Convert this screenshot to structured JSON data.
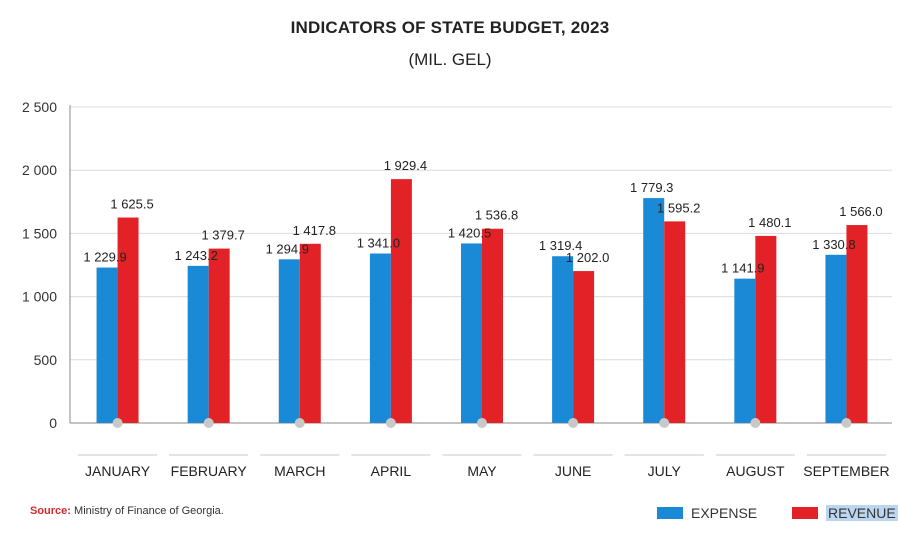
{
  "colors": {
    "expense": "#1a8ad6",
    "revenue": "#e32227"
  },
  "source": {
    "label": "Source:",
    "text": "Ministry of Finance of Georgia."
  },
  "legend": {
    "expense": "EXPENSE",
    "revenue": "REVENUE"
  },
  "chart_data": {
    "type": "bar",
    "title": "INDICATORS OF STATE BUDGET, 2023",
    "subtitle": "(MIL. GEL)",
    "categories": [
      "JANUARY",
      "FEBRUARY",
      "MARCH",
      "APRIL",
      "MAY",
      "JUNE",
      "JULY",
      "AUGUST",
      "SEPTEMBER"
    ],
    "series": [
      {
        "name": "EXPENSE",
        "values": [
          1229.9,
          1243.2,
          1294.9,
          1341.0,
          1420.5,
          1319.4,
          1779.3,
          1141.9,
          1330.8
        ],
        "labels": [
          "1 229.9",
          "1 243.2",
          "1 294.9",
          "1 341.0",
          "1 420.5",
          "1 319.4",
          "1 779.3",
          "1 141.9",
          "1 330.8"
        ]
      },
      {
        "name": "REVENUE",
        "values": [
          1625.5,
          1379.7,
          1417.8,
          1929.4,
          1536.8,
          1202.0,
          1595.2,
          1480.1,
          1566.0
        ],
        "labels": [
          "1 625.5",
          "1 379.7",
          "1 417.8",
          "1 929.4",
          "1 536.8",
          "1 202.0",
          "1 595.2",
          "1 480.1",
          "1 566.0"
        ]
      }
    ],
    "yticks": [
      {
        "value": 0,
        "label": "0"
      },
      {
        "value": 500,
        "label": "500"
      },
      {
        "value": 1000,
        "label": "1 000"
      },
      {
        "value": 1500,
        "label": "1 500"
      },
      {
        "value": 2000,
        "label": "2 000"
      },
      {
        "value": 2500,
        "label": "2 500"
      }
    ],
    "ylim": [
      0,
      2500
    ],
    "grid": true,
    "legend_position": "bottom-right"
  }
}
